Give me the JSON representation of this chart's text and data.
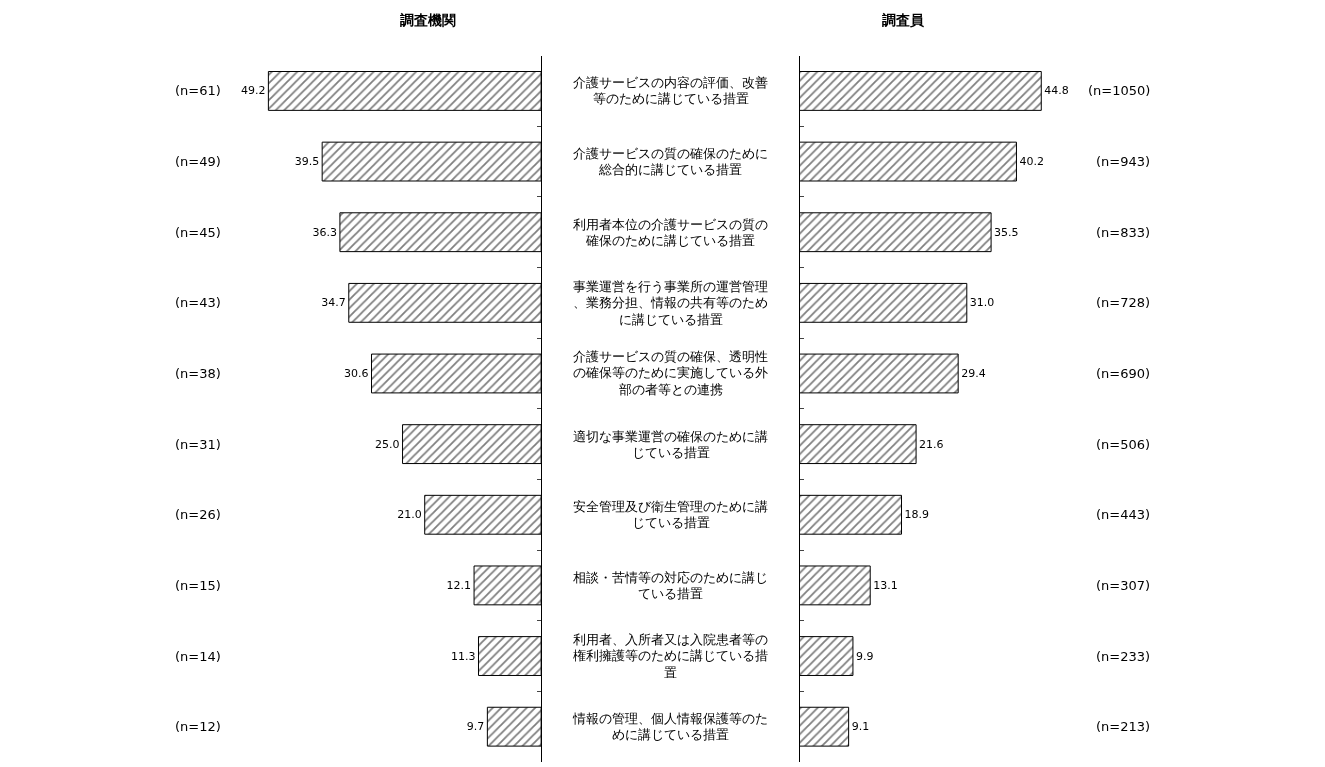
{
  "chart_data": [
    {
      "type": "bar",
      "orientation": "horizontal",
      "title": "調査機関",
      "categories": [
        "介護サービスの内容の評価、改善等のために講じている措置",
        "介護サービスの質の確保のために総合的に講じている措置",
        "利用者本位の介護サービスの質の確保のために講じている措置",
        "事業運営を行う事業所の運営管理、業務分担、情報の共有等のために講じている措置",
        "介護サービスの質の確保、透明性の確保等のために実施している外部の者等との連携",
        "適切な事業運営の確保のために講じている措置",
        "安全管理及び衛生管理のために講じている措置",
        "相談・苦情等の対応のために講じている措置",
        "利用者、入所者又は入院患者等の権利擁護等のために講じている措置",
        "情報の管理、個人情報保護等のために講じている措置"
      ],
      "values": [
        49.2,
        39.5,
        36.3,
        34.7,
        30.6,
        25.0,
        21.0,
        12.1,
        11.3,
        9.7
      ],
      "value_labels": [
        "49.2",
        "39.5",
        "36.3",
        "34.7",
        "30.6",
        "25.0",
        "21.0",
        "12.1",
        "11.3",
        "9.7"
      ],
      "color": "#000000",
      "annotations": [
        "(n=61)",
        "(n=49)",
        "(n=45)",
        "(n=43)",
        "(n=38)",
        "(n=31)",
        "(n=26)",
        "(n=15)",
        "(n=14)",
        "(n=12)"
      ]
    },
    {
      "type": "bar",
      "orientation": "horizontal",
      "title": "調査員",
      "categories": [
        "介護サービスの内容の評価、改善等のために講じている措置",
        "介護サービスの質の確保のために総合的に講じている措置",
        "利用者本位の介護サービスの質の確保のために講じている措置",
        "事業運営を行う事業所の運営管理、業務分担、情報の共有等のために講じている措置",
        "介護サービスの質の確保、透明性の確保等のために実施している外部の者等との連携",
        "適切な事業運営の確保のために講じている措置",
        "安全管理及び衛生管理のために講じている措置",
        "相談・苦情等の対応のために講じている措置",
        "利用者、入所者又は入院患者等の権利擁護等のために講じている措置",
        "情報の管理、個人情報保護等のために講じている措置"
      ],
      "values": [
        44.8,
        40.2,
        35.5,
        31.0,
        29.4,
        21.6,
        18.9,
        13.1,
        9.9,
        9.1
      ],
      "value_labels": [
        "44.8",
        "40.2",
        "35.5",
        "31.0",
        "29.4",
        "21.6",
        "18.9",
        "13.1",
        "9.9",
        "9.1"
      ],
      "color": "#000000",
      "tick_labels": false,
      "annotations": [
        "(n=1050)",
        "(n=943)",
        "(n=833)",
        "(n=728)",
        "(n=690)",
        "(n=506)",
        "(n=443)",
        "(n=307)",
        "(n=233)",
        "(n=213)"
      ]
    }
  ]
}
